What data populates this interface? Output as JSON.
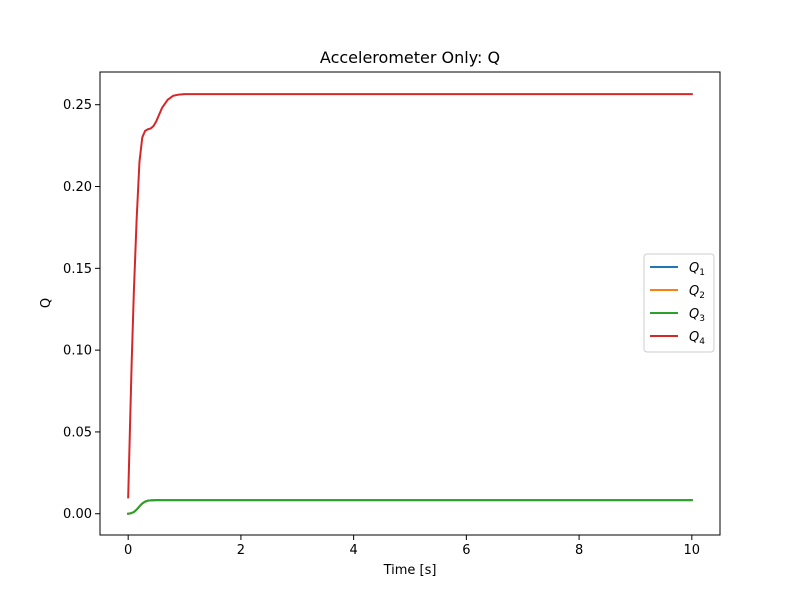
{
  "chart_data": {
    "type": "line",
    "title": "Accelerometer Only: Q",
    "xlabel": "Time [s]",
    "ylabel": "Q",
    "xlim": [
      -0.5,
      10.5
    ],
    "ylim": [
      -0.013,
      0.27
    ],
    "xticks": [
      0,
      2,
      4,
      6,
      8,
      10
    ],
    "xtick_labels": [
      "0",
      "2",
      "4",
      "6",
      "8",
      "10"
    ],
    "yticks": [
      0.0,
      0.05,
      0.1,
      0.15,
      0.2,
      0.25
    ],
    "ytick_labels": [
      "0.00",
      "0.05",
      "0.10",
      "0.15",
      "0.20",
      "0.25"
    ],
    "grid": false,
    "legend_position": "center-right",
    "series": [
      {
        "name": "Q",
        "subscript": "1",
        "color": "#1f77b4",
        "x": [
          0,
          0.05,
          0.1,
          0.15,
          0.2,
          0.25,
          0.3,
          0.35,
          0.4,
          0.5,
          0.6,
          0.8,
          1.0,
          2,
          4,
          6,
          8,
          10
        ],
        "y": [
          0.0,
          0.0003,
          0.001,
          0.0025,
          0.0045,
          0.0063,
          0.0074,
          0.008,
          0.0082,
          0.0083,
          0.0083,
          0.0083,
          0.0083,
          0.0083,
          0.0083,
          0.0083,
          0.0083,
          0.0083
        ]
      },
      {
        "name": "Q",
        "subscript": "2",
        "color": "#ff7f0e",
        "x": [
          0,
          0.05,
          0.1,
          0.15,
          0.2,
          0.25,
          0.3,
          0.35,
          0.4,
          0.5,
          0.6,
          0.8,
          1.0,
          2,
          4,
          6,
          8,
          10
        ],
        "y": [
          0.0,
          0.0003,
          0.001,
          0.0025,
          0.0045,
          0.0063,
          0.0074,
          0.008,
          0.0082,
          0.0083,
          0.0083,
          0.0083,
          0.0083,
          0.0083,
          0.0083,
          0.0083,
          0.0083,
          0.0083
        ]
      },
      {
        "name": "Q",
        "subscript": "3",
        "color": "#2ca02c",
        "x": [
          0,
          0.05,
          0.1,
          0.15,
          0.2,
          0.25,
          0.3,
          0.35,
          0.4,
          0.5,
          0.6,
          0.8,
          1.0,
          2,
          4,
          6,
          8,
          10
        ],
        "y": [
          0.0,
          0.0003,
          0.001,
          0.0025,
          0.0045,
          0.0063,
          0.0074,
          0.008,
          0.0082,
          0.0083,
          0.0083,
          0.0083,
          0.0083,
          0.0083,
          0.0083,
          0.0083,
          0.0083,
          0.0083
        ]
      },
      {
        "name": "Q",
        "subscript": "4",
        "color": "#d62728",
        "x": [
          0,
          0.03,
          0.06,
          0.1,
          0.15,
          0.2,
          0.25,
          0.3,
          0.35,
          0.4,
          0.45,
          0.5,
          0.55,
          0.6,
          0.7,
          0.8,
          0.9,
          1.0,
          1.2,
          1.5,
          2,
          4,
          6,
          8,
          10
        ],
        "y": [
          0.01,
          0.05,
          0.09,
          0.135,
          0.18,
          0.215,
          0.23,
          0.234,
          0.235,
          0.2355,
          0.237,
          0.24,
          0.244,
          0.248,
          0.253,
          0.2555,
          0.2562,
          0.2565,
          0.2565,
          0.2565,
          0.2565,
          0.2565,
          0.2565,
          0.2565,
          0.2565
        ]
      }
    ]
  }
}
